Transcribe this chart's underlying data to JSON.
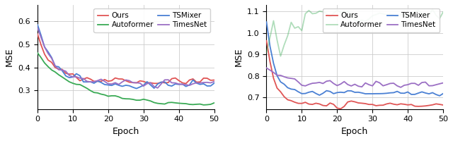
{
  "left_plot": {
    "xlabel": "Epoch",
    "ylabel": "MSE",
    "xlim": [
      0,
      50
    ],
    "ylim": [
      0.22,
      0.67
    ],
    "yticks": [
      0.3,
      0.4,
      0.5,
      0.6
    ],
    "series": {
      "Ours": {
        "color": "#e05555",
        "lw": 1.3
      },
      "TSMixer": {
        "color": "#4a80d4",
        "lw": 1.3
      },
      "Autoformer": {
        "color": "#3aaa55",
        "lw": 1.3
      },
      "TimesNet": {
        "color": "#9b6fc4",
        "lw": 1.3
      }
    }
  },
  "right_plot": {
    "xlabel": "Epoch",
    "ylabel": "MSE",
    "xlim": [
      0,
      50
    ],
    "ylim": [
      0.645,
      1.13
    ],
    "yticks": [
      0.7,
      0.8,
      0.9,
      1.0,
      1.1
    ],
    "series": {
      "Ours": {
        "color": "#e05555",
        "lw": 1.3
      },
      "TSMixer": {
        "color": "#4a80d4",
        "lw": 1.3
      },
      "Autoformer": {
        "color": "#3aaa55",
        "lw": 1.3,
        "alpha": 0.4
      },
      "TimesNet": {
        "color": "#9b6fc4",
        "lw": 1.3
      }
    }
  },
  "legend_labels": [
    "Ours",
    "Autoformer",
    "TSMixer",
    "TimesNet"
  ],
  "figsize": [
    6.4,
    2.0
  ],
  "dpi": 100
}
